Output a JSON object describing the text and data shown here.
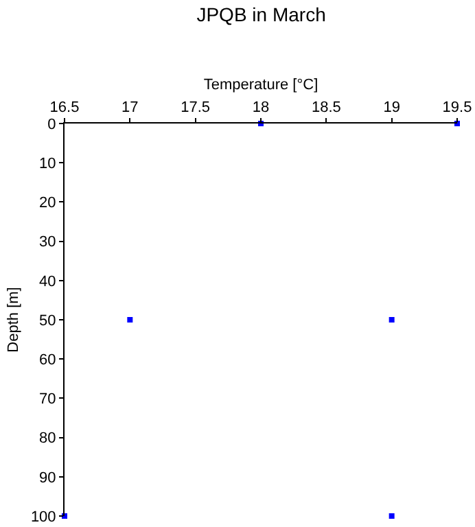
{
  "chart_data": {
    "type": "scatter",
    "title": "JPQB in March",
    "xlabel": "Temperature [°C]",
    "ylabel": "Depth [m]",
    "x": [
      18,
      19.5,
      17,
      19,
      16.5,
      19
    ],
    "series": [
      {
        "color": "#0000ff",
        "values": [
          0,
          0,
          50,
          50,
          100,
          100
        ]
      }
    ],
    "xlim": [
      16.5,
      19.5
    ],
    "xticks": [
      16.5,
      17,
      17.5,
      18,
      18.5,
      19,
      19.5
    ],
    "ylim": [
      100,
      0
    ],
    "yticks": [
      0,
      10,
      20,
      30,
      40,
      50,
      60,
      70,
      80,
      90,
      100
    ],
    "marker": "square"
  }
}
